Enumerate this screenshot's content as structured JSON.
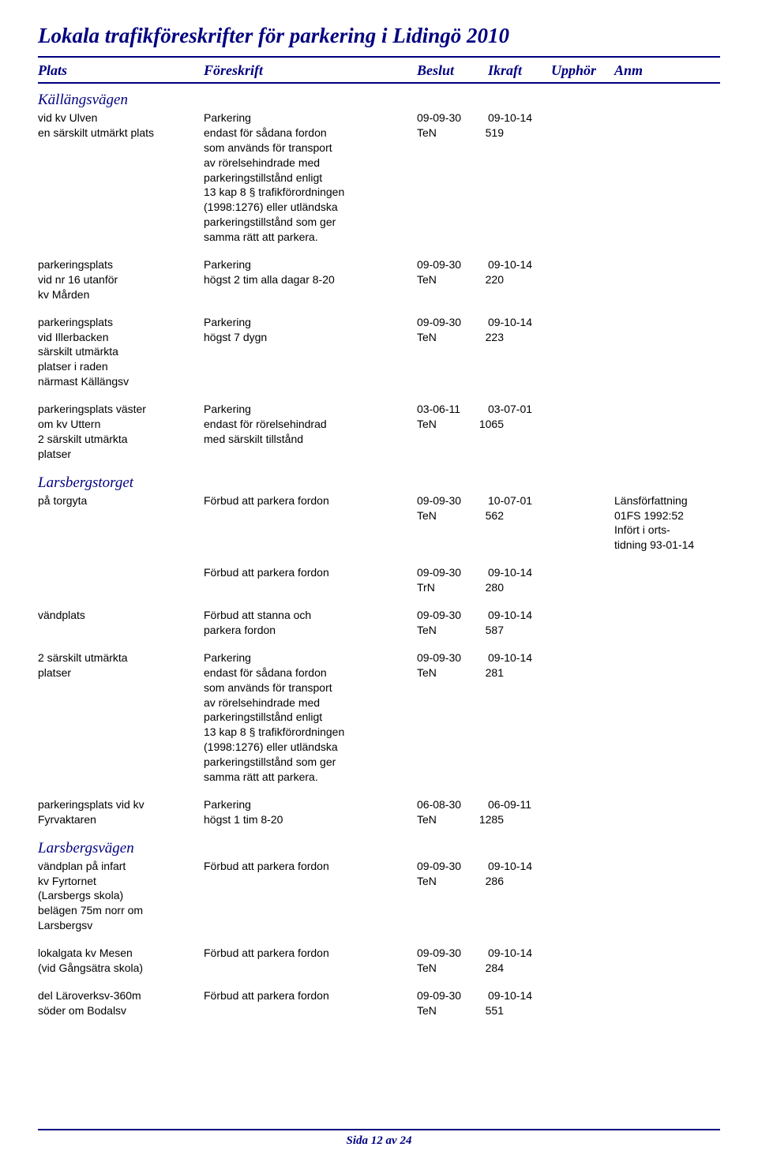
{
  "title": "Lokala trafikföreskrifter för parkering i Lidingö 2010",
  "headers": {
    "c1": "Plats",
    "c2": "Föreskrift",
    "c3": "Beslut",
    "c4": "Ikraft",
    "c5": "Upphör",
    "c6": "Anm"
  },
  "sections": [
    {
      "heading": "Källängsvägen",
      "rows": [
        {
          "plats": "vid kv Ulven\nen särskilt utmärkt plats",
          "foreskrift": "Parkering\nendast för sådana fordon\nsom används för transport\nav rörelsehindrade med\nparkeringstillstånd enligt\n13 kap 8 § trafikförordningen\n(1998:1276) eller utländska\nparkeringstillstånd som ger\nsamma rätt att parkera.",
          "d1": "09-09-30",
          "d2": "09-10-14",
          "auth": "TeN",
          "num": "519",
          "anm": ""
        },
        {
          "plats": "parkeringsplats\nvid nr 16 utanför\nkv Mården",
          "foreskrift": "Parkering\nhögst 2 tim alla dagar 8-20",
          "d1": "09-09-30",
          "d2": "09-10-14",
          "auth": "TeN",
          "num": "220",
          "anm": ""
        },
        {
          "plats": "parkeringsplats\nvid Illerbacken\nsärskilt utmärkta\nplatser i raden\nnärmast Källängsv",
          "foreskrift": "Parkering\nhögst 7 dygn",
          "d1": "09-09-30",
          "d2": "09-10-14",
          "auth": "TeN",
          "num": "223",
          "anm": ""
        },
        {
          "plats": "parkeringsplats väster\nom kv Uttern\n2 särskilt utmärkta\nplatser",
          "foreskrift": "Parkering\nendast för rörelsehindrad\nmed särskilt tillstånd",
          "d1": "03-06-11",
          "d2": "03-07-01",
          "auth": "TeN",
          "num": "1065",
          "anm": ""
        }
      ]
    },
    {
      "heading": "Larsbergstorget",
      "rows": [
        {
          "plats": "på torgyta",
          "foreskrift": "Förbud att parkera fordon",
          "d1": "09-09-30",
          "d2": "10-07-01",
          "auth": "TeN",
          "num": "562",
          "anm": "Länsförfattning\n01FS 1992:52\nInfört i orts-\ntidning 93-01-14"
        },
        {
          "plats": "",
          "foreskrift": "Förbud att parkera fordon",
          "d1": "09-09-30",
          "d2": "09-10-14",
          "auth": "TrN",
          "num": "280",
          "anm": ""
        },
        {
          "plats": "vändplats",
          "foreskrift": "Förbud att stanna och\nparkera fordon",
          "d1": "09-09-30",
          "d2": "09-10-14",
          "auth": "TeN",
          "num": "587",
          "anm": ""
        },
        {
          "plats": "2 särskilt utmärkta\nplatser",
          "foreskrift": "Parkering\nendast för sådana fordon\nsom används för transport\nav rörelsehindrade med\nparkeringstillstånd enligt\n13 kap 8 § trafikförordningen\n(1998:1276) eller utländska\nparkeringstillstånd som ger\nsamma rätt att parkera.",
          "d1": "09-09-30",
          "d2": "09-10-14",
          "auth": "TeN",
          "num": "281",
          "anm": ""
        },
        {
          "plats": "parkeringsplats vid kv\nFyrvaktaren",
          "foreskrift": "Parkering\nhögst 1 tim 8-20",
          "d1": "06-08-30",
          "d2": "06-09-11",
          "auth": "TeN",
          "num": "1285",
          "anm": ""
        }
      ]
    },
    {
      "heading": "Larsbergsvägen",
      "rows": [
        {
          "plats": "vändplan på infart\nkv Fyrtornet\n(Larsbergs skola)\nbelägen 75m norr om\nLarsbergsv",
          "foreskrift": "Förbud att parkera fordon",
          "d1": "09-09-30",
          "d2": "09-10-14",
          "auth": "TeN",
          "num": "286",
          "anm": ""
        },
        {
          "plats": "lokalgata kv Mesen\n(vid Gångsätra skola)",
          "foreskrift": "Förbud att parkera fordon",
          "d1": "09-09-30",
          "d2": "09-10-14",
          "auth": "TeN",
          "num": "284",
          "anm": ""
        },
        {
          "plats": "del Läroverksv-360m\nsöder om Bodalsv",
          "foreskrift": "Förbud att parkera fordon",
          "d1": "09-09-30",
          "d2": "09-10-14",
          "auth": "TeN",
          "num": "551",
          "anm": ""
        }
      ]
    }
  ],
  "footer": "Sida 12 av 24"
}
